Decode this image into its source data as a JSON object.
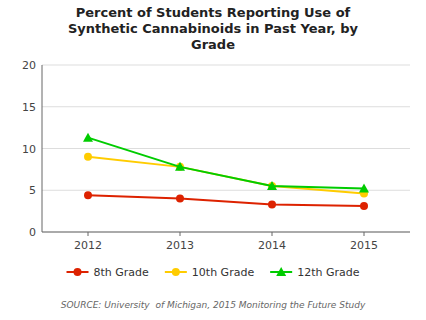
{
  "chart_data": {
    "type": "line",
    "title": "Percent of Students Reporting Use of\nSynthetic Cannabinoids in Past Year, by\nGrade",
    "x": [
      2012,
      2013,
      2014,
      2015
    ],
    "xlim": [
      2011.5,
      2015.5
    ],
    "xticks": [
      2012,
      2013,
      2014,
      2015
    ],
    "ylim": [
      0,
      20
    ],
    "yticks": [
      0,
      5,
      10,
      15,
      20
    ],
    "grid": "y",
    "legend": "bottom",
    "series": [
      {
        "name": "8th Grade",
        "color": "#DD2200",
        "marker": "circle",
        "values": [
          4.4,
          4.0,
          3.3,
          3.1
        ]
      },
      {
        "name": "10th Grade",
        "color": "#FFCC00",
        "marker": "circle",
        "values": [
          9.0,
          7.8,
          5.5,
          4.6
        ]
      },
      {
        "name": "12th Grade",
        "color": "#00CC00",
        "marker": "triangle",
        "values": [
          11.3,
          7.8,
          5.5,
          5.2
        ]
      }
    ],
    "annotations": [
      "SOURCE: University  of Michigan, 2015 Monitoring the Future Study"
    ]
  }
}
